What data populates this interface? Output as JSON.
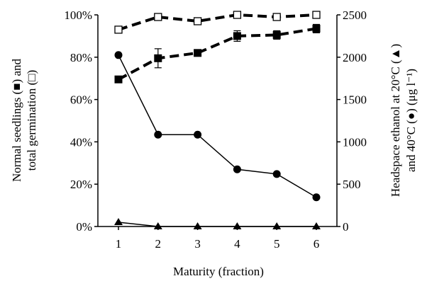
{
  "chart_data": {
    "type": "line",
    "xlabel": "Maturity (fraction)",
    "ylabel_left_line1": "Normal seedlings (■) and",
    "ylabel_left_line2": "total germination (□)",
    "ylabel_right_line1": "Headspace ethanol at 20°C (▲)",
    "ylabel_right_line2": "and 40°C (●) (μg l⁻¹)",
    "x_ticks": [
      "1",
      "2",
      "3",
      "4",
      "5",
      "6"
    ],
    "y_left_ticks": [
      "0%",
      "20%",
      "40%",
      "60%",
      "80%",
      "100%"
    ],
    "y_right_ticks": [
      "0",
      "500",
      "1000",
      "1500",
      "2000",
      "2500"
    ],
    "y_left_range": [
      0,
      100
    ],
    "y_right_range": [
      0,
      2500
    ],
    "x": [
      1,
      2,
      3,
      4,
      5,
      6
    ],
    "series": [
      {
        "key": "total_germination",
        "axis": "left",
        "marker": "open-square",
        "line": "dashed",
        "values": [
          93,
          99,
          97,
          100,
          99,
          100
        ],
        "error": [
          0.5,
          0.5,
          0.5,
          0.5,
          0.5,
          0.5
        ]
      },
      {
        "key": "normal_seedlings",
        "axis": "left",
        "marker": "filled-square",
        "line": "dashed",
        "values": [
          69.5,
          79.5,
          82,
          90,
          90.5,
          93.5
        ],
        "error": [
          1.5,
          4.5,
          1.2,
          2.5,
          2.0,
          2.0
        ]
      },
      {
        "key": "ethanol_40C",
        "axis": "right",
        "marker": "filled-circle",
        "line": "solid",
        "values": [
          2025,
          1085,
          1085,
          675,
          620,
          345
        ]
      },
      {
        "key": "ethanol_20C",
        "axis": "right",
        "marker": "filled-triangle",
        "line": "solid",
        "values": [
          50,
          0,
          0,
          0,
          0,
          0
        ]
      }
    ]
  }
}
